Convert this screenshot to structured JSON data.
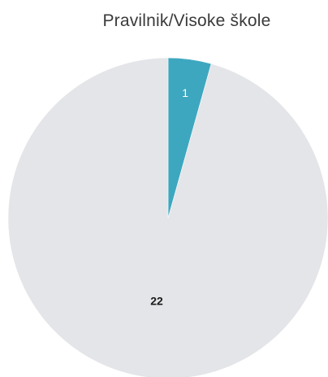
{
  "chart_data": {
    "type": "pie",
    "title": "Pravilnik/Visoke škole",
    "slices": [
      {
        "label": "1",
        "value": 1,
        "color": "#3ea7c0",
        "label_color": "#ffffff",
        "label_weight": "normal"
      },
      {
        "label": "22",
        "value": 22,
        "color": "#e4e5e8",
        "label_color": "#1a1a1a",
        "label_weight": "bold"
      }
    ],
    "start_angle_deg": 0,
    "direction": "clockwise",
    "legend": "none"
  }
}
